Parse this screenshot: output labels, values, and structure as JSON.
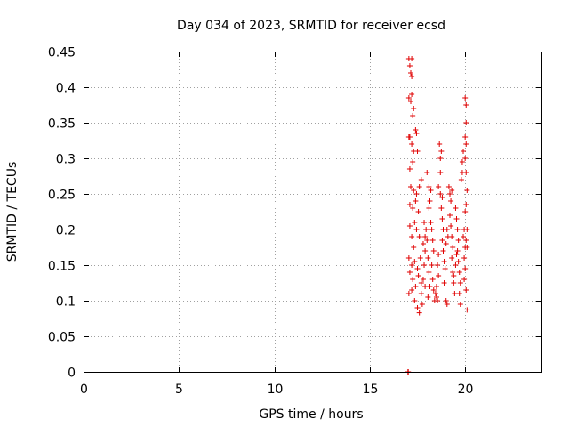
{
  "chart_data": {
    "type": "scatter",
    "title": "Day 034 of 2023, SRMTID for receiver ecsd",
    "xlabel": "GPS time / hours",
    "ylabel": "SRMTID / TECUs",
    "xlim": [
      0,
      24
    ],
    "ylim": [
      0,
      0.45
    ],
    "x_ticks": [
      "0",
      "5",
      "10",
      "15",
      "20"
    ],
    "y_ticks": [
      "0",
      "0.05",
      "0.1",
      "0.15",
      "0.2",
      "0.25",
      "0.3",
      "0.35",
      "0.4",
      "0.45"
    ],
    "grid": true,
    "marker": "+",
    "color": "#e00000",
    "series": [
      {
        "name": "SRMTID",
        "points": [
          [
            17.0,
            0.0
          ],
          [
            17.02,
            0.0
          ],
          [
            17.05,
            0.44
          ],
          [
            17.1,
            0.43
          ],
          [
            17.15,
            0.42
          ],
          [
            17.2,
            0.44
          ],
          [
            17.2,
            0.415
          ],
          [
            17.05,
            0.385
          ],
          [
            17.2,
            0.39
          ],
          [
            17.15,
            0.38
          ],
          [
            17.25,
            0.36
          ],
          [
            17.3,
            0.37
          ],
          [
            17.1,
            0.33
          ],
          [
            17.05,
            0.33
          ],
          [
            17.2,
            0.32
          ],
          [
            17.3,
            0.31
          ],
          [
            17.4,
            0.34
          ],
          [
            17.1,
            0.285
          ],
          [
            17.25,
            0.295
          ],
          [
            17.45,
            0.335
          ],
          [
            17.5,
            0.31
          ],
          [
            17.15,
            0.26
          ],
          [
            17.3,
            0.255
          ],
          [
            17.45,
            0.25
          ],
          [
            17.6,
            0.26
          ],
          [
            17.7,
            0.27
          ],
          [
            17.1,
            0.235
          ],
          [
            17.25,
            0.23
          ],
          [
            17.35,
            0.21
          ],
          [
            17.4,
            0.24
          ],
          [
            17.55,
            0.225
          ],
          [
            17.1,
            0.205
          ],
          [
            17.2,
            0.19
          ],
          [
            17.3,
            0.175
          ],
          [
            17.45,
            0.2
          ],
          [
            17.6,
            0.19
          ],
          [
            17.05,
            0.16
          ],
          [
            17.2,
            0.15
          ],
          [
            17.35,
            0.155
          ],
          [
            17.5,
            0.145
          ],
          [
            17.65,
            0.16
          ],
          [
            17.1,
            0.14
          ],
          [
            17.25,
            0.13
          ],
          [
            17.4,
            0.12
          ],
          [
            17.55,
            0.135
          ],
          [
            17.7,
            0.125
          ],
          [
            17.05,
            0.11
          ],
          [
            17.2,
            0.115
          ],
          [
            17.35,
            0.1
          ],
          [
            17.5,
            0.09
          ],
          [
            17.6,
            0.083
          ],
          [
            17.75,
            0.095
          ],
          [
            17.7,
            0.11
          ],
          [
            17.8,
            0.13
          ],
          [
            17.85,
            0.15
          ],
          [
            17.9,
            0.12
          ],
          [
            17.8,
            0.18
          ],
          [
            17.9,
            0.17
          ],
          [
            17.95,
            0.2
          ],
          [
            17.85,
            0.21
          ],
          [
            17.9,
            0.19
          ],
          [
            18.0,
            0.185
          ],
          [
            18.05,
            0.16
          ],
          [
            18.1,
            0.14
          ],
          [
            18.15,
            0.12
          ],
          [
            18.05,
            0.105
          ],
          [
            18.0,
            0.28
          ],
          [
            18.1,
            0.26
          ],
          [
            18.15,
            0.24
          ],
          [
            18.2,
            0.255
          ],
          [
            18.1,
            0.23
          ],
          [
            18.2,
            0.21
          ],
          [
            18.25,
            0.2
          ],
          [
            18.3,
            0.185
          ],
          [
            18.35,
            0.17
          ],
          [
            18.25,
            0.15
          ],
          [
            18.3,
            0.13
          ],
          [
            18.35,
            0.115
          ],
          [
            18.4,
            0.1
          ],
          [
            18.45,
            0.11
          ],
          [
            18.5,
            0.105
          ],
          [
            18.55,
            0.1
          ],
          [
            18.5,
            0.12
          ],
          [
            18.6,
            0.135
          ],
          [
            18.55,
            0.15
          ],
          [
            18.6,
            0.165
          ],
          [
            18.65,
            0.32
          ],
          [
            18.7,
            0.3
          ],
          [
            18.75,
            0.31
          ],
          [
            18.7,
            0.28
          ],
          [
            18.6,
            0.26
          ],
          [
            18.7,
            0.25
          ],
          [
            18.8,
            0.245
          ],
          [
            18.75,
            0.23
          ],
          [
            18.8,
            0.215
          ],
          [
            18.85,
            0.2
          ],
          [
            18.8,
            0.185
          ],
          [
            18.85,
            0.17
          ],
          [
            18.9,
            0.155
          ],
          [
            18.95,
            0.145
          ],
          [
            18.9,
            0.125
          ],
          [
            19.0,
            0.1
          ],
          [
            19.05,
            0.095
          ],
          [
            19.0,
            0.18
          ],
          [
            19.05,
            0.2
          ],
          [
            19.1,
            0.19
          ],
          [
            19.15,
            0.26
          ],
          [
            19.2,
            0.25
          ],
          [
            19.25,
            0.24
          ],
          [
            19.3,
            0.255
          ],
          [
            19.2,
            0.22
          ],
          [
            19.25,
            0.205
          ],
          [
            19.3,
            0.19
          ],
          [
            19.35,
            0.175
          ],
          [
            19.3,
            0.16
          ],
          [
            19.35,
            0.14
          ],
          [
            19.4,
            0.125
          ],
          [
            19.45,
            0.11
          ],
          [
            19.4,
            0.135
          ],
          [
            19.5,
            0.15
          ],
          [
            19.55,
            0.165
          ],
          [
            19.5,
            0.23
          ],
          [
            19.55,
            0.215
          ],
          [
            19.6,
            0.2
          ],
          [
            19.65,
            0.185
          ],
          [
            19.6,
            0.17
          ],
          [
            19.65,
            0.155
          ],
          [
            19.7,
            0.14
          ],
          [
            19.75,
            0.125
          ],
          [
            19.7,
            0.11
          ],
          [
            19.75,
            0.095
          ],
          [
            19.8,
            0.27
          ],
          [
            19.85,
            0.295
          ],
          [
            19.9,
            0.31
          ],
          [
            19.85,
            0.28
          ],
          [
            19.9,
            0.19
          ],
          [
            19.95,
            0.2
          ],
          [
            20.0,
            0.175
          ],
          [
            19.95,
            0.16
          ],
          [
            20.0,
            0.145
          ],
          [
            19.95,
            0.13
          ],
          [
            20.0,
            0.385
          ],
          [
            20.05,
            0.375
          ],
          [
            20.05,
            0.35
          ],
          [
            20.0,
            0.33
          ],
          [
            20.05,
            0.32
          ],
          [
            20.0,
            0.3
          ],
          [
            20.05,
            0.28
          ],
          [
            20.1,
            0.255
          ],
          [
            20.05,
            0.235
          ],
          [
            20.0,
            0.225
          ],
          [
            20.1,
            0.2
          ],
          [
            20.05,
            0.185
          ],
          [
            20.1,
            0.175
          ],
          [
            20.05,
            0.115
          ],
          [
            20.1,
            0.087
          ]
        ]
      }
    ]
  }
}
